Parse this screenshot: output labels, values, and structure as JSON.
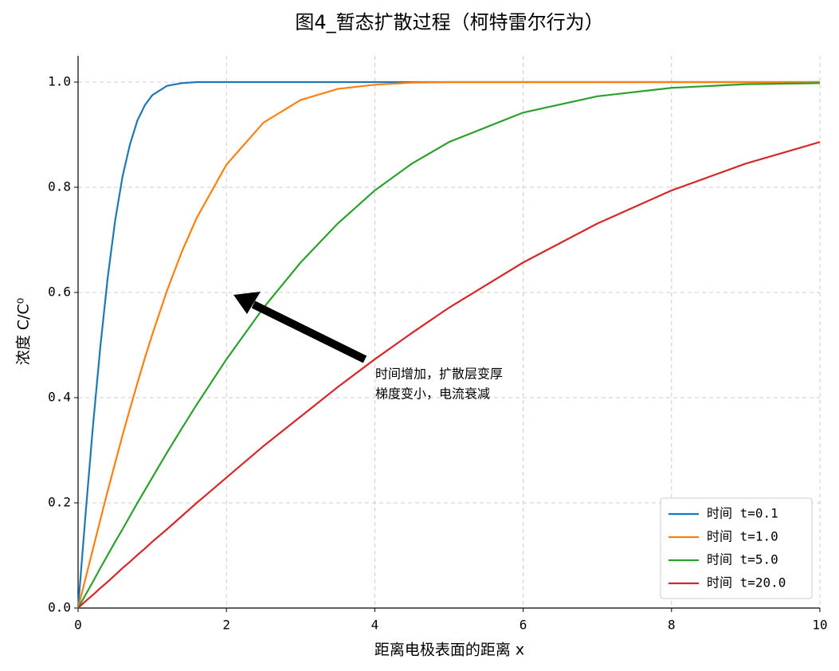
{
  "chart_data": {
    "type": "line",
    "title": "图4_暂态扩散过程（柯特雷尔行为）",
    "xlabel": "距离电极表面的距离 x",
    "ylabel": "浓度 C/C⁰",
    "annotation": [
      "时间增加，扩散层变厚",
      "梯度变小，电流衰减"
    ],
    "x": [
      0,
      0.1,
      0.2,
      0.3,
      0.4,
      0.5,
      0.6,
      0.7,
      0.8,
      0.9,
      1.0,
      1.2,
      1.4,
      1.6,
      2.0,
      2.5,
      3.0,
      3.5,
      4.0,
      4.5,
      5.0,
      6.0,
      7.0,
      8.0,
      9.0,
      10.0
    ],
    "series": [
      {
        "name": "时间 t=0.1",
        "color": "#1f77b4",
        "values": [
          0,
          0.177,
          0.345,
          0.497,
          0.629,
          0.737,
          0.821,
          0.882,
          0.927,
          0.956,
          0.975,
          0.993,
          0.998,
          1.0,
          1.0,
          1.0,
          1.0,
          1.0,
          1.0,
          1.0,
          1.0,
          1.0,
          1.0,
          1.0,
          1.0,
          1.0
        ]
      },
      {
        "name": "时间 t=1.0",
        "color": "#ff7f0e",
        "values": [
          0,
          0.056,
          0.112,
          0.168,
          0.223,
          0.276,
          0.329,
          0.379,
          0.428,
          0.475,
          0.52,
          0.604,
          0.678,
          0.742,
          0.843,
          0.923,
          0.966,
          0.987,
          0.995,
          0.999,
          1.0,
          1.0,
          1.0,
          1.0,
          1.0,
          1.0
        ]
      },
      {
        "name": "时间 t=5.0",
        "color": "#2ca02c",
        "values": [
          0,
          0.025,
          0.05,
          0.076,
          0.101,
          0.126,
          0.15,
          0.175,
          0.2,
          0.224,
          0.248,
          0.296,
          0.342,
          0.387,
          0.473,
          0.571,
          0.657,
          0.731,
          0.794,
          0.845,
          0.886,
          0.942,
          0.973,
          0.989,
          0.996,
          0.998
        ]
      },
      {
        "name": "时间 t=20.0",
        "color": "#d62728",
        "values": [
          0,
          0.013,
          0.025,
          0.038,
          0.05,
          0.063,
          0.076,
          0.088,
          0.101,
          0.113,
          0.126,
          0.15,
          0.175,
          0.2,
          0.248,
          0.308,
          0.364,
          0.42,
          0.473,
          0.523,
          0.571,
          0.657,
          0.731,
          0.794,
          0.845,
          0.886
        ]
      }
    ],
    "xlim": [
      0,
      10
    ],
    "xticks": [
      0,
      2,
      4,
      6,
      8,
      10
    ],
    "ylim": [
      0,
      1.05
    ],
    "yticks": [
      {
        "value": 0,
        "label": "0.0"
      },
      {
        "value": 0.2,
        "label": "0.2"
      },
      {
        "value": 0.4,
        "label": "0.4"
      },
      {
        "value": 0.6,
        "label": "0.6"
      },
      {
        "value": 0.8,
        "label": "0.8"
      },
      {
        "value": 1.0,
        "label": "1.0"
      }
    ],
    "grid": true,
    "legend": "lower right"
  }
}
